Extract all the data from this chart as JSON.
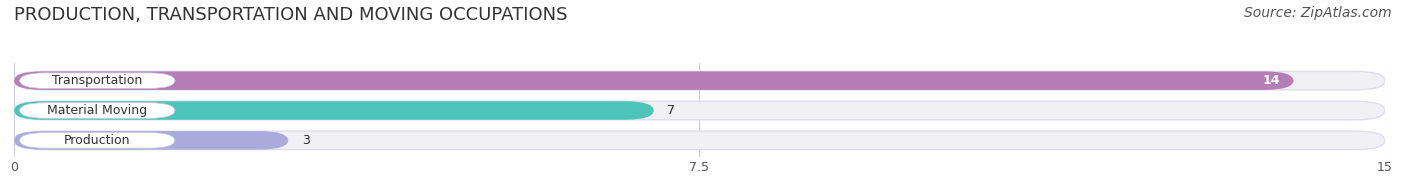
{
  "title": "PRODUCTION, TRANSPORTATION AND MOVING OCCUPATIONS",
  "source": "Source: ZipAtlas.com",
  "categories": [
    "Transportation",
    "Material Moving",
    "Production"
  ],
  "values": [
    14,
    7,
    3
  ],
  "bar_colors": [
    "#b57cb8",
    "#4dc4b8",
    "#aaaadd"
  ],
  "value_colors": [
    "white",
    "black",
    "black"
  ],
  "xlim": [
    0,
    15
  ],
  "xticks": [
    0,
    7.5,
    15
  ],
  "background_color": "#ffffff",
  "bar_bg_color": "#f0f0f5",
  "title_fontsize": 13,
  "source_fontsize": 10,
  "label_fontsize": 9,
  "value_fontsize": 9
}
